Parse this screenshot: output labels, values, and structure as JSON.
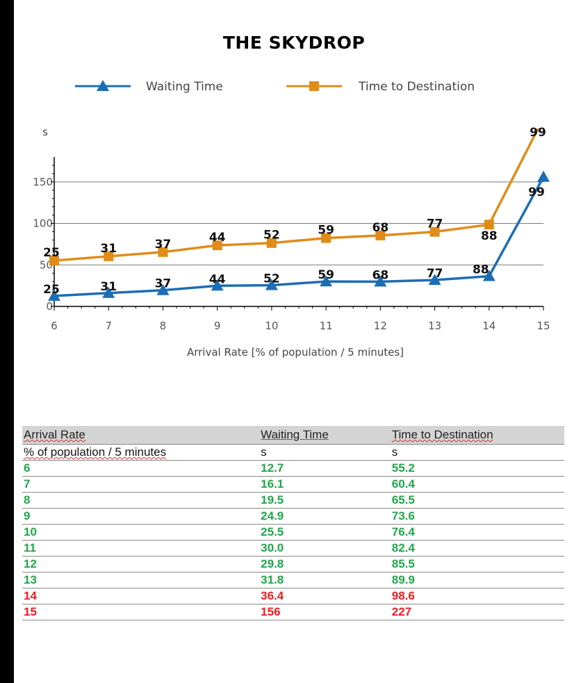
{
  "chart_data": {
    "type": "line",
    "title": "THE SKYDROP",
    "xlabel": "Arrival Rate [% of population / 5 minutes]",
    "ylabel": "s",
    "x": [
      6,
      7,
      8,
      9,
      10,
      11,
      12,
      13,
      14,
      15
    ],
    "xlim": [
      6,
      15
    ],
    "ylim": [
      0,
      180
    ],
    "yticks": [
      0,
      50,
      100,
      150
    ],
    "grid": true,
    "legend_position": "top",
    "series": [
      {
        "name": "Waiting Time",
        "color": "#1b6db5",
        "marker": "triangle",
        "values": [
          12.7,
          16.1,
          19.5,
          24.9,
          25.5,
          30.0,
          29.8,
          31.8,
          36.4,
          156
        ],
        "data_labels": [
          "25",
          "31",
          "37",
          "44",
          "52",
          "59",
          "68",
          "77",
          "88",
          "99"
        ]
      },
      {
        "name": "Time to Destination",
        "color": "#e08c1a",
        "marker": "square",
        "values": [
          55.2,
          60.4,
          65.5,
          73.6,
          76.4,
          82.4,
          85.5,
          89.9,
          98.6,
          227
        ],
        "data_labels": [
          "25",
          "31",
          "37",
          "44",
          "52",
          "59",
          "68",
          "77",
          "88",
          "99"
        ]
      }
    ]
  },
  "table": {
    "headers": [
      "Arrival Rate",
      "Waiting Time",
      "Time to Destination"
    ],
    "units": [
      "% of population / 5 minutes",
      "s",
      "s"
    ],
    "rows": [
      {
        "rate": "6",
        "wait": "12.7",
        "dest": "55.2",
        "status": "ok"
      },
      {
        "rate": "7",
        "wait": "16.1",
        "dest": "60.4",
        "status": "ok"
      },
      {
        "rate": "8",
        "wait": "19.5",
        "dest": "65.5",
        "status": "ok"
      },
      {
        "rate": "9",
        "wait": "24.9",
        "dest": "73.6",
        "status": "ok"
      },
      {
        "rate": "10",
        "wait": "25.5",
        "dest": "76.4",
        "status": "ok"
      },
      {
        "rate": "11",
        "wait": "30.0",
        "dest": "82.4",
        "status": "ok"
      },
      {
        "rate": "12",
        "wait": "29.8",
        "dest": "85.5",
        "status": "ok"
      },
      {
        "rate": "13",
        "wait": "31.8",
        "dest": "89.9",
        "status": "ok"
      },
      {
        "rate": "14",
        "wait": "36.4",
        "dest": "98.6",
        "status": "bad"
      },
      {
        "rate": "15",
        "wait": "156",
        "dest": "227",
        "status": "bad"
      }
    ],
    "status_colors": {
      "ok": "#21a64a",
      "bad": "#ee1c24"
    }
  }
}
